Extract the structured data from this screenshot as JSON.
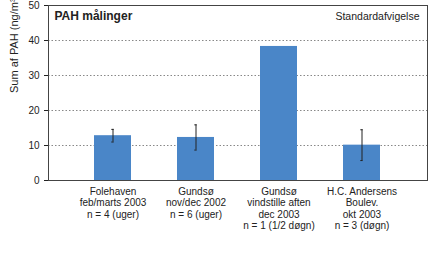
{
  "chart_data": {
    "type": "bar",
    "title": "PAH målinger",
    "y_label": "Sum af PAH (ng/m³)",
    "categories": [
      "Folehaven\nfeb/marts 2003\nn = 4 (uger)",
      "Gundsø\nnov/dec 2002\nn = 6 (uger)",
      "Gundsø\nvindstille aften\ndec 2003\nn = 1 (1/2 døgn)",
      "H.C. Andersens\nBoulev.\nokt 2003\nn = 3 (døgn)"
    ],
    "values": [
      12.8,
      12.3,
      38.3,
      10.1
    ],
    "errors": [
      1.8,
      3.6,
      null,
      4.4
    ],
    "error_label": "Standardafvigelse",
    "color": "#4a86c8",
    "ylim": [
      0,
      50
    ],
    "yticks": [
      0,
      10,
      20,
      30,
      40,
      50
    ],
    "grid": true,
    "legend": "top-right"
  }
}
